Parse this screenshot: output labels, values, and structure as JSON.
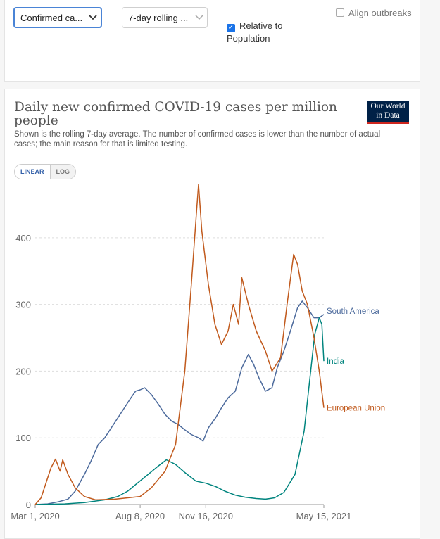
{
  "controls": {
    "metric_select": "Confirmed ca...",
    "interval_select": "7-day rolling ...",
    "relative_checkbox_line1": "Relative to",
    "relative_checkbox_line2": "Population",
    "relative_checked": true,
    "align_outbreaks": "Align outbreaks",
    "align_checked": false
  },
  "header": {
    "title": "Daily new confirmed COVID-19 cases per million people",
    "subtitle": "Shown is the rolling 7-day average. The number of confirmed cases is lower than the number of actual cases; the main reason for that is limited testing.",
    "logo_line1": "Our World",
    "logo_line2": "in Data"
  },
  "scale_toggle": {
    "linear": "LINEAR",
    "log": "LOG",
    "active": "linear"
  },
  "chart_data": {
    "type": "line",
    "title": "Daily new confirmed COVID-19 cases per million people",
    "subtitle": "Shown is the rolling 7-day average. The number of confirmed cases is lower than the number of actual cases; the main reason for that is limited testing.",
    "x_ticks": [
      "Mar 1, 2020",
      "Aug 8, 2020",
      "Nov 16, 2020",
      "May 15, 2021"
    ],
    "y_ticks": [
      0,
      100,
      200,
      300,
      400
    ],
    "xlim": [
      "2020-03-01",
      "2021-05-15"
    ],
    "ylim": [
      0,
      480
    ],
    "grid": "horizontal dashed",
    "colors": {
      "south_america": "#4c6a9c",
      "india": "#00847e",
      "european_union": "#c15a1d"
    },
    "series": [
      {
        "name": "South America",
        "color": "#4c6a9c",
        "points": [
          [
            "2020-03-01",
            0
          ],
          [
            "2020-03-20",
            1
          ],
          [
            "2020-04-05",
            4
          ],
          [
            "2020-04-20",
            8
          ],
          [
            "2020-05-01",
            20
          ],
          [
            "2020-05-15",
            45
          ],
          [
            "2020-05-25",
            65
          ],
          [
            "2020-06-05",
            90
          ],
          [
            "2020-06-15",
            100
          ],
          [
            "2020-06-25",
            115
          ],
          [
            "2020-07-05",
            130
          ],
          [
            "2020-07-15",
            145
          ],
          [
            "2020-07-25",
            160
          ],
          [
            "2020-08-01",
            170
          ],
          [
            "2020-08-08",
            172
          ],
          [
            "2020-08-15",
            175
          ],
          [
            "2020-08-25",
            165
          ],
          [
            "2020-09-05",
            150
          ],
          [
            "2020-09-15",
            135
          ],
          [
            "2020-09-25",
            125
          ],
          [
            "2020-10-05",
            120
          ],
          [
            "2020-10-15",
            112
          ],
          [
            "2020-10-25",
            105
          ],
          [
            "2020-11-05",
            100
          ],
          [
            "2020-11-12",
            95
          ],
          [
            "2020-11-20",
            115
          ],
          [
            "2020-12-01",
            130
          ],
          [
            "2020-12-10",
            145
          ],
          [
            "2020-12-20",
            160
          ],
          [
            "2020-12-31",
            170
          ],
          [
            "2021-01-10",
            205
          ],
          [
            "2021-01-20",
            225
          ],
          [
            "2021-01-28",
            210
          ],
          [
            "2021-02-05",
            190
          ],
          [
            "2021-02-15",
            170
          ],
          [
            "2021-02-25",
            175
          ],
          [
            "2021-03-05",
            205
          ],
          [
            "2021-03-15",
            230
          ],
          [
            "2021-03-25",
            260
          ],
          [
            "2021-04-05",
            295
          ],
          [
            "2021-04-12",
            305
          ],
          [
            "2021-04-20",
            295
          ],
          [
            "2021-04-30",
            280
          ],
          [
            "2021-05-08",
            280
          ],
          [
            "2021-05-15",
            285
          ]
        ]
      },
      {
        "name": "India",
        "color": "#00847e",
        "points": [
          [
            "2020-03-01",
            0
          ],
          [
            "2020-04-15",
            1
          ],
          [
            "2020-05-15",
            3
          ],
          [
            "2020-06-15",
            7
          ],
          [
            "2020-07-05",
            12
          ],
          [
            "2020-07-20",
            20
          ],
          [
            "2020-08-05",
            33
          ],
          [
            "2020-08-20",
            45
          ],
          [
            "2020-09-05",
            58
          ],
          [
            "2020-09-17",
            67
          ],
          [
            "2020-10-01",
            60
          ],
          [
            "2020-10-15",
            48
          ],
          [
            "2020-11-01",
            35
          ],
          [
            "2020-11-16",
            32
          ],
          [
            "2020-12-01",
            27
          ],
          [
            "2020-12-15",
            20
          ],
          [
            "2020-12-31",
            14
          ],
          [
            "2021-01-15",
            11
          ],
          [
            "2021-02-01",
            9
          ],
          [
            "2021-02-15",
            8
          ],
          [
            "2021-03-01",
            10
          ],
          [
            "2021-03-15",
            18
          ],
          [
            "2021-04-01",
            45
          ],
          [
            "2021-04-15",
            110
          ],
          [
            "2021-05-01",
            255
          ],
          [
            "2021-05-08",
            280
          ],
          [
            "2021-05-12",
            270
          ],
          [
            "2021-05-15",
            215
          ]
        ]
      },
      {
        "name": "European Union",
        "color": "#c15a1d",
        "points": [
          [
            "2020-03-01",
            0
          ],
          [
            "2020-03-10",
            10
          ],
          [
            "2020-03-25",
            55
          ],
          [
            "2020-04-01",
            68
          ],
          [
            "2020-04-08",
            50
          ],
          [
            "2020-04-12",
            67
          ],
          [
            "2020-04-20",
            45
          ],
          [
            "2020-05-01",
            25
          ],
          [
            "2020-05-15",
            12
          ],
          [
            "2020-06-01",
            7
          ],
          [
            "2020-07-01",
            8
          ],
          [
            "2020-08-08",
            12
          ],
          [
            "2020-08-25",
            25
          ],
          [
            "2020-09-15",
            50
          ],
          [
            "2020-10-01",
            90
          ],
          [
            "2020-10-15",
            200
          ],
          [
            "2020-10-25",
            330
          ],
          [
            "2020-11-02",
            440
          ],
          [
            "2020-11-05",
            480
          ],
          [
            "2020-11-10",
            410
          ],
          [
            "2020-11-20",
            330
          ],
          [
            "2020-11-30",
            270
          ],
          [
            "2020-12-10",
            240
          ],
          [
            "2020-12-20",
            260
          ],
          [
            "2020-12-28",
            300
          ],
          [
            "2021-01-05",
            270
          ],
          [
            "2021-01-10",
            340
          ],
          [
            "2021-01-20",
            300
          ],
          [
            "2021-02-01",
            260
          ],
          [
            "2021-02-15",
            230
          ],
          [
            "2021-02-25",
            200
          ],
          [
            "2021-03-10",
            220
          ],
          [
            "2021-03-20",
            300
          ],
          [
            "2021-03-30",
            375
          ],
          [
            "2021-04-05",
            360
          ],
          [
            "2021-04-12",
            320
          ],
          [
            "2021-04-20",
            300
          ],
          [
            "2021-04-30",
            250
          ],
          [
            "2021-05-08",
            200
          ],
          [
            "2021-05-15",
            145
          ]
        ]
      }
    ]
  }
}
